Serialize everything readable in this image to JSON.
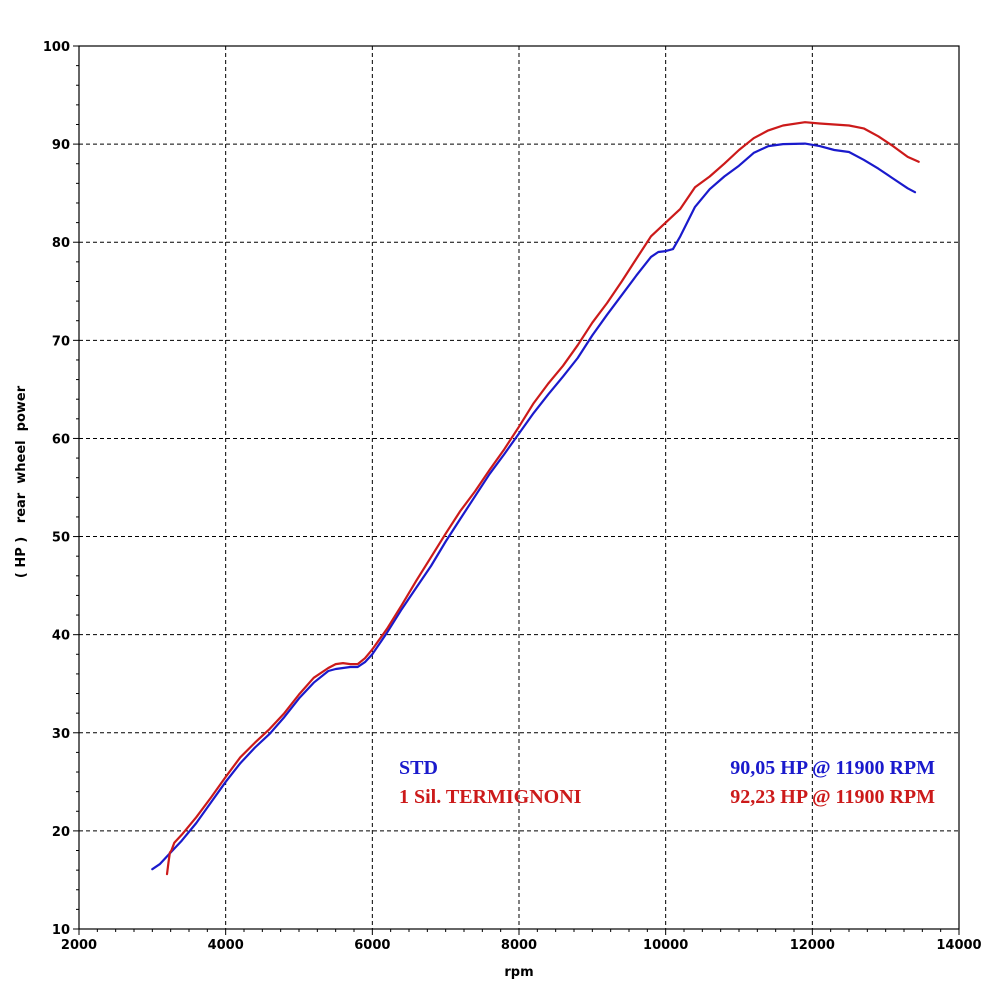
{
  "chart_data": {
    "type": "line",
    "xlabel": "rpm",
    "ylabel": "( HP )   rear  wheel  power",
    "xlim": [
      2000,
      14000
    ],
    "ylim": [
      10,
      100
    ],
    "x_ticks": [
      "2000",
      "4000",
      "6000",
      "8000",
      "10000",
      "12000",
      "14000"
    ],
    "y_ticks": [
      "10",
      "20",
      "30",
      "40",
      "50",
      "60",
      "70",
      "80",
      "90",
      "100"
    ],
    "grid": true,
    "legend_position": "bottom-right",
    "series": [
      {
        "name": "STD",
        "annotation": "90,05 HP @ 11900 RPM",
        "color": "#1a1acc",
        "x": [
          3000,
          3100,
          3200,
          3400,
          3600,
          3800,
          4000,
          4200,
          4400,
          4600,
          4800,
          5000,
          5200,
          5400,
          5500,
          5600,
          5700,
          5800,
          5900,
          6000,
          6200,
          6400,
          6600,
          6800,
          7000,
          7200,
          7400,
          7600,
          7800,
          8000,
          8200,
          8400,
          8600,
          8800,
          9000,
          9200,
          9400,
          9600,
          9800,
          9900,
          10000,
          10100,
          10200,
          10400,
          10600,
          10800,
          11000,
          11200,
          11400,
          11600,
          11900,
          12100,
          12300,
          12500,
          12700,
          12900,
          13100,
          13300,
          13400
        ],
        "values": [
          16.1,
          16.6,
          17.4,
          19.0,
          20.8,
          22.9,
          25.0,
          26.9,
          28.5,
          29.9,
          31.6,
          33.5,
          35.1,
          36.3,
          36.5,
          36.6,
          36.7,
          36.7,
          37.2,
          38.0,
          40.2,
          42.6,
          44.8,
          47.0,
          49.5,
          51.8,
          54.1,
          56.4,
          58.4,
          60.5,
          62.6,
          64.5,
          66.3,
          68.2,
          70.5,
          72.6,
          74.6,
          76.6,
          78.5,
          79.0,
          79.1,
          79.3,
          80.6,
          83.6,
          85.4,
          86.7,
          87.8,
          89.1,
          89.8,
          90.0,
          90.05,
          89.8,
          89.4,
          89.2,
          88.4,
          87.5,
          86.5,
          85.5,
          85.1
        ]
      },
      {
        "name": "1 Sil. TERMIGNONI",
        "annotation": "92,23 HP @ 11900 RPM",
        "color": "#cc1a1a",
        "x": [
          3200,
          3220,
          3240,
          3260,
          3300,
          3400,
          3600,
          3800,
          4000,
          4200,
          4400,
          4600,
          4800,
          5000,
          5200,
          5400,
          5500,
          5600,
          5700,
          5800,
          5900,
          6000,
          6200,
          6400,
          6600,
          6800,
          7000,
          7200,
          7400,
          7600,
          7800,
          8000,
          8200,
          8400,
          8600,
          8800,
          9000,
          9200,
          9400,
          9600,
          9800,
          10000,
          10200,
          10400,
          10600,
          10800,
          11000,
          11200,
          11400,
          11600,
          11900,
          12100,
          12300,
          12500,
          12700,
          12900,
          13100,
          13300,
          13450
        ],
        "values": [
          15.6,
          16.8,
          17.8,
          18.0,
          18.8,
          19.6,
          21.4,
          23.4,
          25.5,
          27.5,
          29.0,
          30.4,
          32.0,
          33.9,
          35.6,
          36.6,
          37.0,
          37.1,
          37.0,
          37.0,
          37.6,
          38.5,
          40.6,
          43.0,
          45.5,
          47.9,
          50.3,
          52.6,
          54.6,
          56.8,
          58.9,
          61.2,
          63.6,
          65.6,
          67.4,
          69.5,
          71.8,
          73.8,
          76.0,
          78.3,
          80.6,
          82.0,
          83.4,
          85.6,
          86.7,
          88.0,
          89.4,
          90.6,
          91.4,
          91.9,
          92.23,
          92.1,
          92.0,
          91.9,
          91.6,
          90.8,
          89.8,
          88.7,
          88.2
        ]
      }
    ]
  },
  "legend": {
    "std_label": "STD",
    "std_value": "90,05 HP @ 11900 RPM",
    "term_label": "1 Sil. TERMIGNONI",
    "term_value": "92,23 HP @ 11900 RPM"
  }
}
